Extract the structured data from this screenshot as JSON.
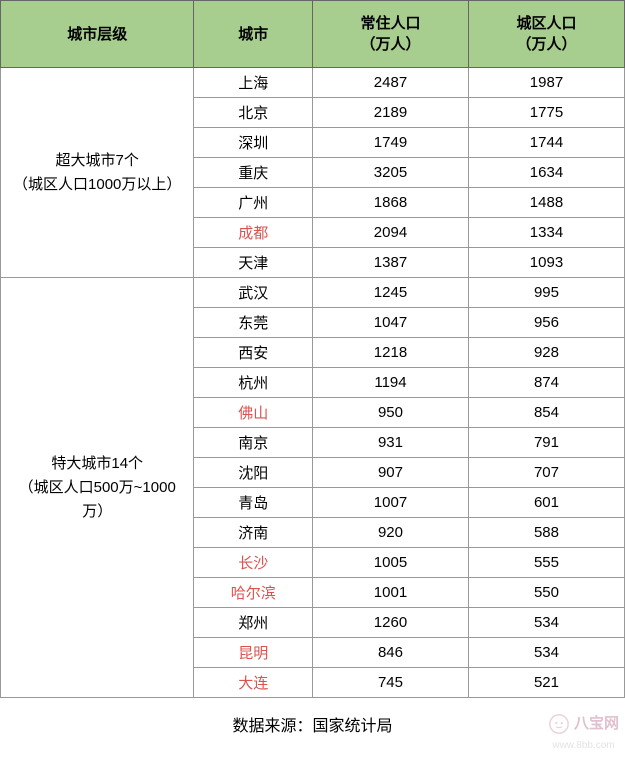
{
  "table": {
    "columns": [
      "城市层级",
      "城市",
      "常住人口\n（万人）",
      "城区人口\n（万人）"
    ],
    "header_bg": "#a8ce8f",
    "border_color": "#999999",
    "highlight_color": "#d9534f",
    "text_color": "#000000",
    "tiers": [
      {
        "title": "超大城市7个",
        "desc": "（城区人口1000万以上）",
        "rows": [
          {
            "city": "上海",
            "resident": 2487,
            "urban": 1987,
            "highlight": false
          },
          {
            "city": "北京",
            "resident": 2189,
            "urban": 1775,
            "highlight": false
          },
          {
            "city": "深圳",
            "resident": 1749,
            "urban": 1744,
            "highlight": false
          },
          {
            "city": "重庆",
            "resident": 3205,
            "urban": 1634,
            "highlight": false
          },
          {
            "city": "广州",
            "resident": 1868,
            "urban": 1488,
            "highlight": false
          },
          {
            "city": "成都",
            "resident": 2094,
            "urban": 1334,
            "highlight": true
          },
          {
            "city": "天津",
            "resident": 1387,
            "urban": 1093,
            "highlight": false
          }
        ]
      },
      {
        "title": "特大城市14个",
        "desc": "（城区人口500万~1000万）",
        "rows": [
          {
            "city": "武汉",
            "resident": 1245,
            "urban": 995,
            "highlight": false
          },
          {
            "city": "东莞",
            "resident": 1047,
            "urban": 956,
            "highlight": false
          },
          {
            "city": "西安",
            "resident": 1218,
            "urban": 928,
            "highlight": false
          },
          {
            "city": "杭州",
            "resident": 1194,
            "urban": 874,
            "highlight": false
          },
          {
            "city": "佛山",
            "resident": 950,
            "urban": 854,
            "highlight": true
          },
          {
            "city": "南京",
            "resident": 931,
            "urban": 791,
            "highlight": false
          },
          {
            "city": "沈阳",
            "resident": 907,
            "urban": 707,
            "highlight": false
          },
          {
            "city": "青岛",
            "resident": 1007,
            "urban": 601,
            "highlight": false
          },
          {
            "city": "济南",
            "resident": 920,
            "urban": 588,
            "highlight": false
          },
          {
            "city": "长沙",
            "resident": 1005,
            "urban": 555,
            "highlight": true
          },
          {
            "city": "哈尔滨",
            "resident": 1001,
            "urban": 550,
            "highlight": true
          },
          {
            "city": "郑州",
            "resident": 1260,
            "urban": 534,
            "highlight": false
          },
          {
            "city": "昆明",
            "resident": 846,
            "urban": 534,
            "highlight": true
          },
          {
            "city": "大连",
            "resident": 745,
            "urban": 521,
            "highlight": true
          }
        ]
      }
    ]
  },
  "source": {
    "label": "数据来源：国家统计局"
  },
  "watermark": {
    "brand": "八宝网",
    "url": "www.8bb.com"
  }
}
